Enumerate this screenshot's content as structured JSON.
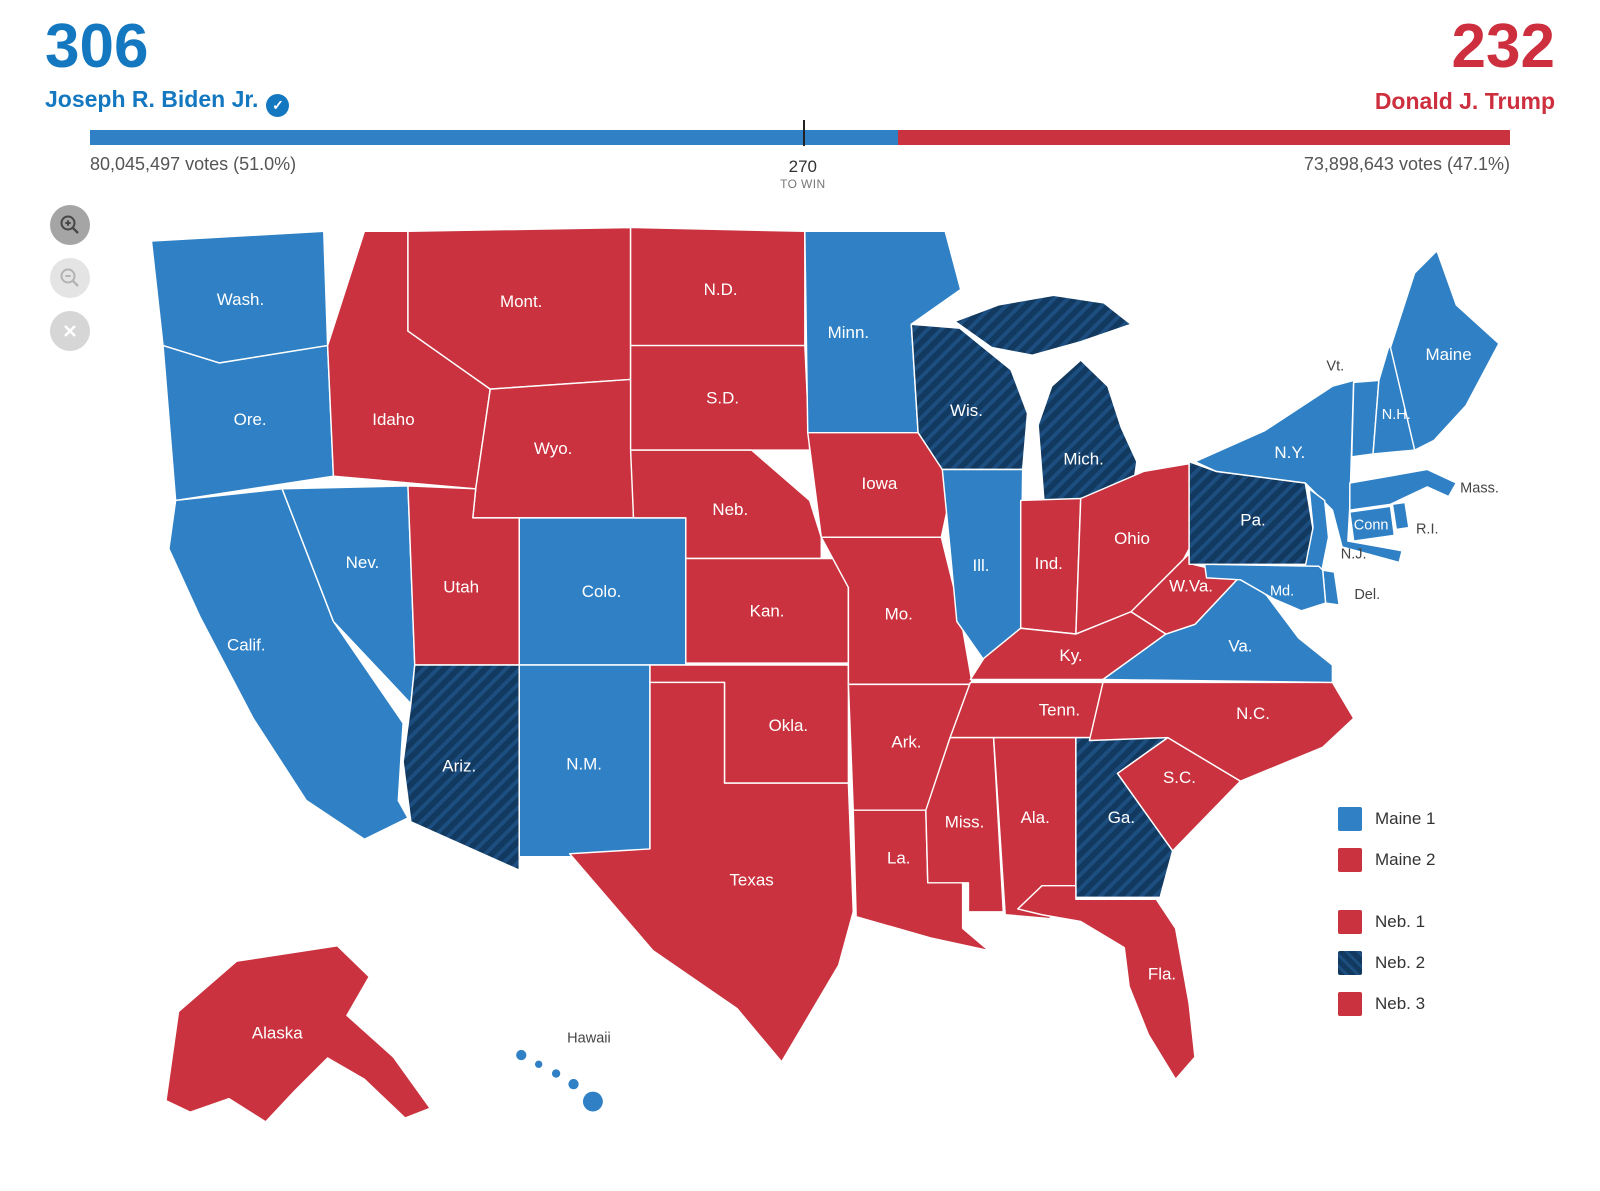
{
  "candidates": {
    "biden": {
      "electoral_votes": "306",
      "name": "Joseph R. Biden Jr.",
      "votes_label": "80,045,497 votes (51.0%)"
    },
    "trump": {
      "electoral_votes": "232",
      "name": "Donald J. Trump",
      "votes_label": "73,898,643 votes (47.1%)"
    }
  },
  "bar": {
    "dem_pct": 56.9,
    "rep_pct": 43.1,
    "marker_pct": 50.2,
    "to_win_value": "270",
    "to_win_label": "TO WIN"
  },
  "colors": {
    "dem": "#2f80c4",
    "rep": "#c9323e",
    "flip": "#12395f",
    "flip_hatch": "#1d4e80",
    "dem_strong": "#1478c0",
    "rep_strong": "#cd2f3e"
  },
  "icons": {
    "winner_check": "✓",
    "zoom_in": "magnifier-plus",
    "zoom_out": "magnifier-minus",
    "close": "x"
  },
  "legend": {
    "groups": [
      [
        {
          "label": "Maine 1",
          "party": "dem"
        },
        {
          "label": "Maine 2",
          "party": "rep"
        }
      ],
      [
        {
          "label": "Neb. 1",
          "party": "rep"
        },
        {
          "label": "Neb. 2",
          "party": "flip"
        },
        {
          "label": "Neb. 3",
          "party": "rep"
        }
      ]
    ]
  },
  "map": {
    "states": {
      "WA": {
        "label": "Wash.",
        "party": "dem"
      },
      "OR": {
        "label": "Ore.",
        "party": "dem"
      },
      "CA": {
        "label": "Calif.",
        "party": "dem"
      },
      "NV": {
        "label": "Nev.",
        "party": "dem"
      },
      "ID": {
        "label": "Idaho",
        "party": "rep"
      },
      "MT": {
        "label": "Mont.",
        "party": "rep"
      },
      "WY": {
        "label": "Wyo.",
        "party": "rep"
      },
      "UT": {
        "label": "Utah",
        "party": "rep"
      },
      "CO": {
        "label": "Colo.",
        "party": "dem"
      },
      "AZ": {
        "label": "Ariz.",
        "party": "flip"
      },
      "NM": {
        "label": "N.M.",
        "party": "dem"
      },
      "ND": {
        "label": "N.D.",
        "party": "rep"
      },
      "SD": {
        "label": "S.D.",
        "party": "rep"
      },
      "NE": {
        "label": "Neb.",
        "party": "rep"
      },
      "KS": {
        "label": "Kan.",
        "party": "rep"
      },
      "OK": {
        "label": "Okla.",
        "party": "rep"
      },
      "TX": {
        "label": "Texas",
        "party": "rep"
      },
      "MN": {
        "label": "Minn.",
        "party": "dem"
      },
      "IA": {
        "label": "Iowa",
        "party": "rep"
      },
      "MO": {
        "label": "Mo.",
        "party": "rep"
      },
      "AR": {
        "label": "Ark.",
        "party": "rep"
      },
      "LA": {
        "label": "La.",
        "party": "rep"
      },
      "WI": {
        "label": "Wis.",
        "party": "flip"
      },
      "IL": {
        "label": "Ill.",
        "party": "dem"
      },
      "MI": {
        "label": "Mich.",
        "party": "flip"
      },
      "IN": {
        "label": "Ind.",
        "party": "rep"
      },
      "OH": {
        "label": "Ohio",
        "party": "rep"
      },
      "KY": {
        "label": "Ky.",
        "party": "rep"
      },
      "TN": {
        "label": "Tenn.",
        "party": "rep"
      },
      "MS": {
        "label": "Miss.",
        "party": "rep"
      },
      "AL": {
        "label": "Ala.",
        "party": "rep"
      },
      "GA": {
        "label": "Ga.",
        "party": "flip"
      },
      "FL": {
        "label": "Fla.",
        "party": "rep"
      },
      "SC": {
        "label": "S.C.",
        "party": "rep"
      },
      "NC": {
        "label": "N.C.",
        "party": "rep"
      },
      "VA": {
        "label": "Va.",
        "party": "dem"
      },
      "WV": {
        "label": "W.Va.",
        "party": "rep"
      },
      "PA": {
        "label": "Pa.",
        "party": "flip"
      },
      "NY": {
        "label": "N.Y.",
        "party": "dem"
      },
      "NJ": {
        "label": "N.J.",
        "party": "dem",
        "label_style": "dark"
      },
      "DE": {
        "label": "Del.",
        "party": "dem",
        "label_style": "dark"
      },
      "MD": {
        "label": "Md.",
        "party": "dem"
      },
      "VT": {
        "label": "Vt.",
        "party": "dem",
        "label_style": "dark"
      },
      "NH": {
        "label": "N.H.",
        "party": "dem"
      },
      "ME": {
        "label": "Maine",
        "party": "dem"
      },
      "MA": {
        "label": "Mass.",
        "party": "dem",
        "label_style": "dark"
      },
      "CT": {
        "label": "Conn",
        "party": "dem"
      },
      "RI": {
        "label": "R.I.",
        "party": "dem",
        "label_style": "dark"
      },
      "AK": {
        "label": "Alaska",
        "party": "rep"
      },
      "HI": {
        "label": "Hawaii",
        "party": "dem",
        "label_style": "dark"
      }
    }
  }
}
